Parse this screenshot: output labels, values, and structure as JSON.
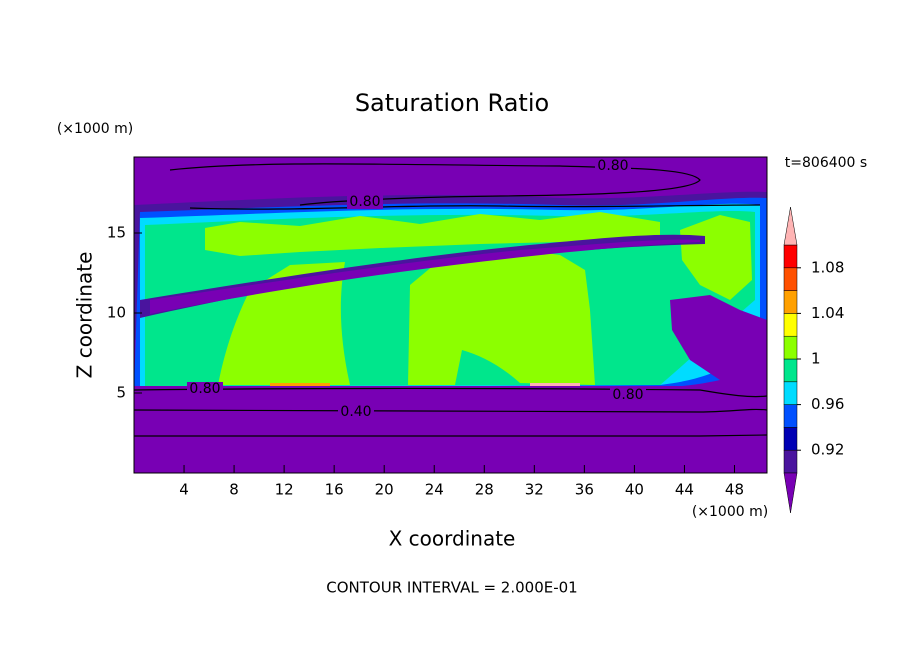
{
  "chart_data": {
    "type": "contour",
    "title": "Saturation Ratio",
    "x_label": "X coordinate",
    "y_label": "Z coordinate",
    "x_unit": "(×1000 m)",
    "y_unit": "(×1000 m)",
    "time_label": "t=806400 s",
    "footer": "CONTOUR INTERVAL = 2.000E-01",
    "xlim": [
      0,
      50.6
    ],
    "xticks": [
      4,
      8,
      12,
      16,
      20,
      24,
      28,
      32,
      36,
      40,
      44,
      48
    ],
    "ylim": [
      0,
      19.75
    ],
    "yticks": [
      5,
      10,
      15
    ],
    "contour_labels": [
      "0.80",
      "0.80",
      "0.80",
      "0.80",
      "0.40"
    ],
    "colorbar": {
      "clim": [
        0.9,
        1.1
      ],
      "ticks": [
        0.92,
        0.96,
        1,
        1.04,
        1.08
      ],
      "colors": [
        "#7800b4",
        "#4a149e",
        "#0000b4",
        "#0050ff",
        "#00dcff",
        "#00e68c",
        "#8cff00",
        "#ffff00",
        "#ffa000",
        "#ff5000",
        "#ff0000",
        "#ffb4b4"
      ]
    }
  }
}
